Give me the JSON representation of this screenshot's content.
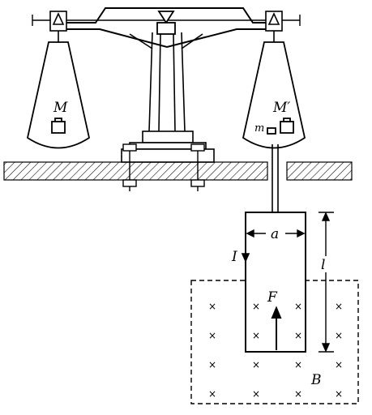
{
  "labels": {
    "mass_left": "M",
    "mass_right": "M′",
    "small_mass": "m",
    "width": "a",
    "current": "I",
    "length": "l",
    "force": "F",
    "field": "B"
  },
  "field_marker": "×",
  "colors": {
    "ink": "#000000",
    "background": "#ffffff"
  }
}
